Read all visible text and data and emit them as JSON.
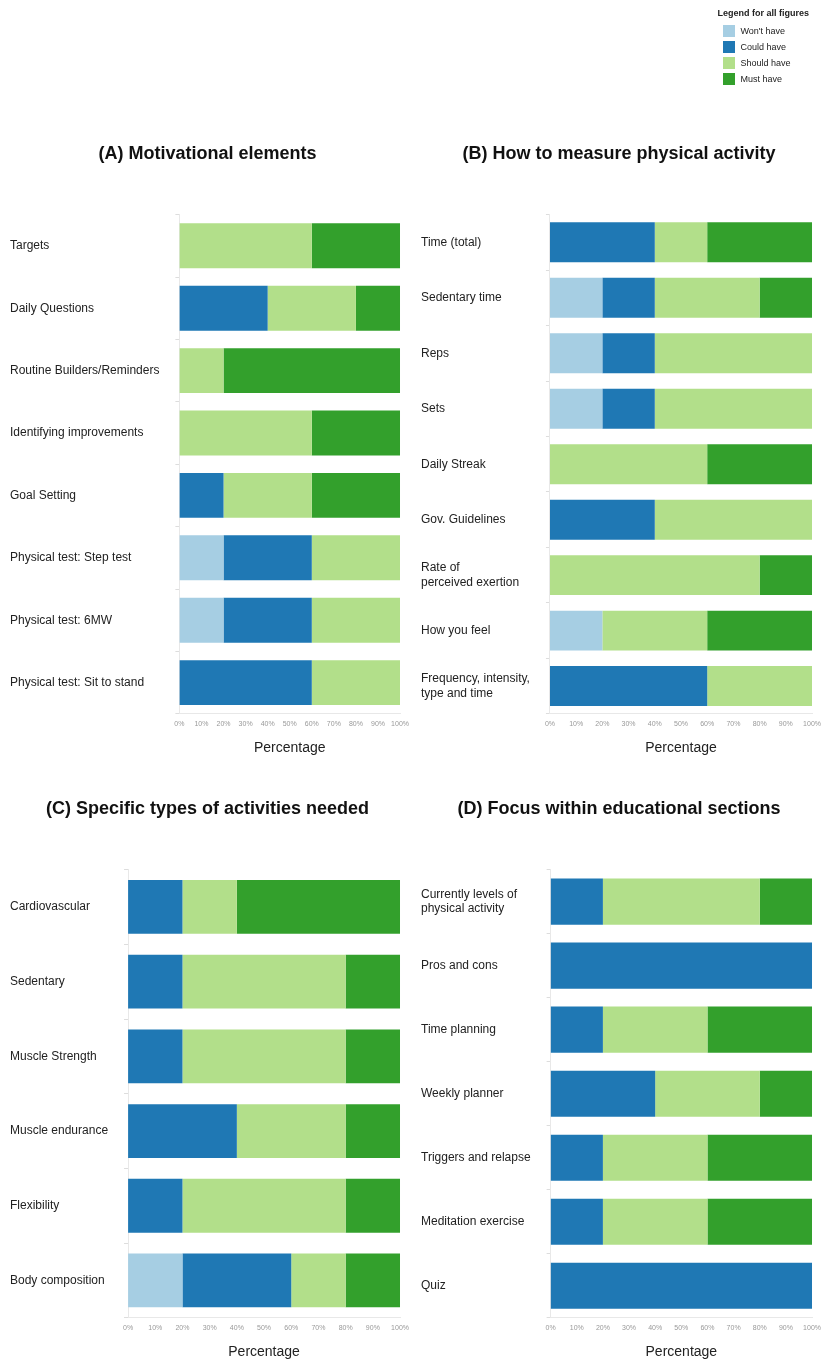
{
  "chart_data": [
    {
      "type": "bar",
      "orientation": "horizontal",
      "stacked": true,
      "title": "(A) Motivational elements",
      "xlabel": "Percentage",
      "legend": "top right",
      "legend_title": "Legend for all figures",
      "grid": false,
      "categories": [
        "Targets",
        "Daily Questions",
        "Routine Builders/Reminders",
        "Identifying improvements",
        "Goal Setting",
        "Physical test: Step test",
        "Physical test: 6MW",
        "Physical test: Sit to stand"
      ],
      "xlim": [
        0,
        100
      ],
      "xticks": [
        {
          "value": 0,
          "label": "0%"
        },
        {
          "value": 10,
          "label": "10%"
        },
        {
          "value": 20,
          "label": "20%"
        },
        {
          "value": 30,
          "label": "30%"
        },
        {
          "value": 40,
          "label": "40%"
        },
        {
          "value": 50,
          "label": "50%"
        },
        {
          "value": 60,
          "label": "60%"
        },
        {
          "value": 70,
          "label": "70%"
        },
        {
          "value": 80,
          "label": "80%"
        },
        {
          "value": 90,
          "label": "90%"
        },
        {
          "value": 100,
          "label": "100%"
        }
      ],
      "series": [
        {
          "name": "Won't have",
          "color": "#a6cee3",
          "values": [
            0,
            0,
            0,
            0,
            0,
            20,
            20,
            0
          ]
        },
        {
          "name": "Could have",
          "color": "#1f78b4",
          "values": [
            0,
            40,
            0,
            0,
            20,
            40,
            40,
            60
          ]
        },
        {
          "name": "Should have",
          "color": "#b2df8a",
          "values": [
            60,
            40,
            20,
            60,
            40,
            40,
            40,
            40
          ]
        },
        {
          "name": "Must have",
          "color": "#33a02c",
          "values": [
            40,
            20,
            80,
            40,
            40,
            0,
            0,
            0
          ]
        }
      ]
    },
    {
      "type": "bar",
      "orientation": "horizontal",
      "stacked": true,
      "title": "(B) How to measure physical activity",
      "xlabel": "Percentage",
      "grid": false,
      "categories": [
        "Time (total)",
        "Sedentary time",
        "Reps",
        "Sets",
        "Daily Streak",
        "Gov. Guidelines",
        "Rate of\nperceived exertion",
        "How you feel",
        "Frequency, intensity,\ntype and time"
      ],
      "xlim": [
        0,
        100
      ],
      "xticks": [
        {
          "value": 0,
          "label": "0%"
        },
        {
          "value": 10,
          "label": "10%"
        },
        {
          "value": 20,
          "label": "20%"
        },
        {
          "value": 30,
          "label": "30%"
        },
        {
          "value": 40,
          "label": "40%"
        },
        {
          "value": 50,
          "label": "50%"
        },
        {
          "value": 60,
          "label": "60%"
        },
        {
          "value": 70,
          "label": "70%"
        },
        {
          "value": 80,
          "label": "80%"
        },
        {
          "value": 90,
          "label": "90%"
        },
        {
          "value": 100,
          "label": "100%"
        }
      ],
      "series": [
        {
          "color": "#a6cee3",
          "values": [
            0,
            20,
            20,
            20,
            0,
            0,
            0,
            20,
            0
          ]
        },
        {
          "color": "#1f78b4",
          "values": [
            40,
            20,
            20,
            20,
            0,
            40,
            0,
            0,
            60
          ]
        },
        {
          "color": "#b2df8a",
          "values": [
            20,
            40,
            60,
            60,
            60,
            60,
            80,
            40,
            40
          ]
        },
        {
          "color": "#33a02c",
          "values": [
            40,
            20,
            0,
            0,
            40,
            0,
            20,
            40,
            0
          ]
        }
      ]
    },
    {
      "type": "bar",
      "orientation": "horizontal",
      "stacked": true,
      "title": "(C) Specific types of activities needed",
      "xlabel": "Percentage",
      "grid": false,
      "categories": [
        "Cardiovascular",
        "Sedentary",
        "Muscle Strength",
        "Muscle endurance",
        "Flexibility",
        "Body composition"
      ],
      "xlim": [
        0,
        100
      ],
      "xticks": [
        {
          "value": 0,
          "label": "0%"
        },
        {
          "value": 10,
          "label": "10%"
        },
        {
          "value": 20,
          "label": "20%"
        },
        {
          "value": 30,
          "label": "30%"
        },
        {
          "value": 40,
          "label": "40%"
        },
        {
          "value": 50,
          "label": "50%"
        },
        {
          "value": 60,
          "label": "60%"
        },
        {
          "value": 70,
          "label": "70%"
        },
        {
          "value": 80,
          "label": "80%"
        },
        {
          "value": 90,
          "label": "90%"
        },
        {
          "value": 100,
          "label": "100%"
        }
      ],
      "series": [
        {
          "color": "#a6cee3",
          "values": [
            0,
            0,
            0,
            0,
            0,
            20
          ]
        },
        {
          "color": "#1f78b4",
          "values": [
            20,
            20,
            20,
            40,
            20,
            40
          ]
        },
        {
          "color": "#b2df8a",
          "values": [
            20,
            60,
            60,
            40,
            60,
            20
          ]
        },
        {
          "color": "#33a02c",
          "values": [
            60,
            20,
            20,
            20,
            20,
            20
          ]
        }
      ]
    },
    {
      "type": "bar",
      "orientation": "horizontal",
      "stacked": true,
      "title": "(D) Focus within educational sections",
      "xlabel": "Percentage",
      "grid": false,
      "categories": [
        "Currently levels of\nphysical activity",
        "Pros and cons",
        "Time planning",
        "Weekly planner",
        "Triggers and relapse",
        "Meditation exercise",
        "Quiz"
      ],
      "xlim": [
        0,
        100
      ],
      "xticks": [
        {
          "value": 0,
          "label": "0%"
        },
        {
          "value": 10,
          "label": "10%"
        },
        {
          "value": 20,
          "label": "20%"
        },
        {
          "value": 30,
          "label": "30%"
        },
        {
          "value": 40,
          "label": "40%"
        },
        {
          "value": 50,
          "label": "50%"
        },
        {
          "value": 60,
          "label": "60%"
        },
        {
          "value": 70,
          "label": "70%"
        },
        {
          "value": 80,
          "label": "80%"
        },
        {
          "value": 90,
          "label": "90%"
        },
        {
          "value": 100,
          "label": "100%"
        }
      ],
      "series": [
        {
          "color": "#a6cee3",
          "values": [
            0,
            0,
            0,
            0,
            0,
            0,
            0
          ]
        },
        {
          "color": "#1f78b4",
          "values": [
            20,
            100,
            20,
            40,
            20,
            20,
            100
          ]
        },
        {
          "color": "#b2df8a",
          "values": [
            60,
            0,
            40,
            40,
            40,
            40,
            0
          ]
        },
        {
          "color": "#33a02c",
          "values": [
            20,
            0,
            40,
            20,
            40,
            40,
            0
          ]
        }
      ]
    }
  ]
}
